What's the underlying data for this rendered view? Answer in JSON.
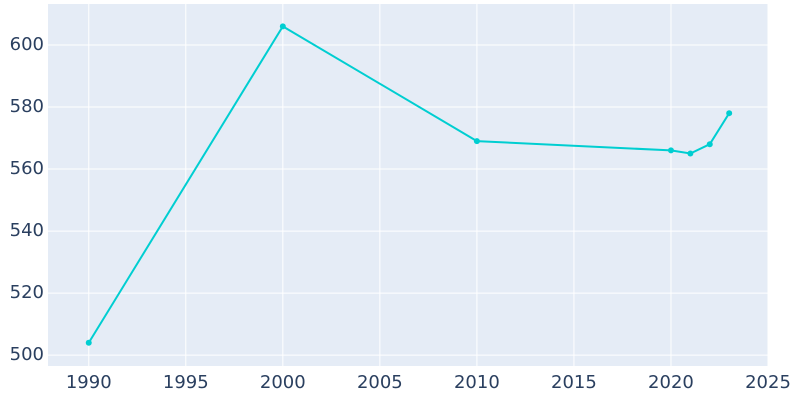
{
  "chart_data": {
    "type": "line",
    "x": [
      1990,
      2000,
      2010,
      2020,
      2021,
      2022,
      2023
    ],
    "series": [
      {
        "color": "#00ced1",
        "values": [
          504,
          606,
          569,
          566,
          565,
          568,
          578
        ]
      }
    ],
    "xlim": [
      1987.9,
      2025
    ],
    "xticks": [
      1990,
      1995,
      2000,
      2005,
      2010,
      2015,
      2020,
      2025
    ],
    "ylim": [
      496.5,
      613.2
    ],
    "yticks": [
      500,
      520,
      540,
      560,
      580,
      600
    ],
    "grid": true
  }
}
